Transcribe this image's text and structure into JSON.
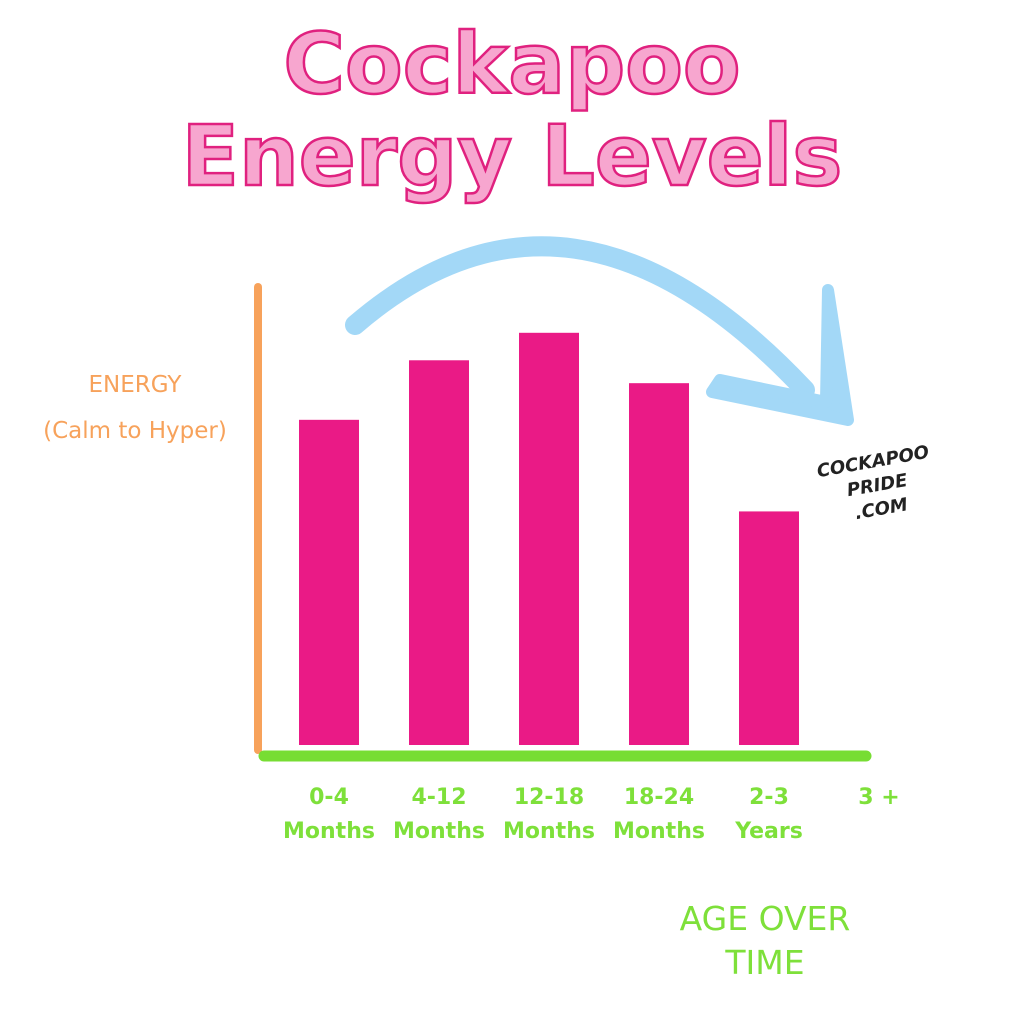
{
  "chart_data": {
    "type": "bar",
    "title": "Cockapoo\nEnergy Levels",
    "y_label": "ENERGY\n(Calm to Hyper)",
    "x_label": "AGE OVER\nTIME",
    "watermark": "COCKAPOO\nPRIDE\n.COM",
    "categories": [
      "0-4\nMonths",
      "4-12\nMonths",
      "12-18\nMonths",
      "18-24\nMonths",
      "2-3\nYears",
      "3 +"
    ],
    "values": [
      71,
      84,
      90,
      79,
      51,
      null
    ],
    "color": "#ea1a86",
    "ylim": [
      0,
      100
    ]
  }
}
